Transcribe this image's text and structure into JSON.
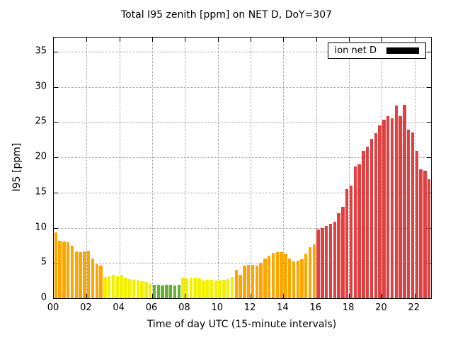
{
  "chart_data": {
    "type": "bar",
    "title": "Total I95 zenith [ppm] on NET D, DoY=307",
    "xlabel": "Time of day UTC (15-minute intervals)",
    "ylabel": "I95 [ppm]",
    "legend": {
      "label": "ion net D",
      "swatch_color": "#000000",
      "position": "top-right"
    },
    "grid": true,
    "interval_minutes": 15,
    "start_time": "00:00",
    "xlim_hours": [
      0,
      23
    ],
    "ylim": [
      0,
      37
    ],
    "x_ticks": [
      {
        "hour": 0,
        "label": "00"
      },
      {
        "hour": 2,
        "label": "02"
      },
      {
        "hour": 4,
        "label": "04"
      },
      {
        "hour": 6,
        "label": "06"
      },
      {
        "hour": 8,
        "label": "08"
      },
      {
        "hour": 10,
        "label": "10"
      },
      {
        "hour": 12,
        "label": "12"
      },
      {
        "hour": 14,
        "label": "14"
      },
      {
        "hour": 16,
        "label": "16"
      },
      {
        "hour": 18,
        "label": "18"
      },
      {
        "hour": 20,
        "label": "20"
      },
      {
        "hour": 22,
        "label": "22"
      }
    ],
    "y_ticks": [
      0,
      5,
      10,
      15,
      20,
      25,
      30,
      35
    ],
    "palette": {
      "green": "#66b032",
      "yellow": "#f0f000",
      "orange": "#ffa500",
      "red": "#e04040"
    },
    "values": [
      9.4,
      8.1,
      8.0,
      7.9,
      7.4,
      6.6,
      6.5,
      6.6,
      6.7,
      5.6,
      4.8,
      4.6,
      3.0,
      3.1,
      3.3,
      3.1,
      3.3,
      2.9,
      2.7,
      2.6,
      2.6,
      2.4,
      2.3,
      2.1,
      1.9,
      1.9,
      1.8,
      1.9,
      1.9,
      1.8,
      1.9,
      2.9,
      2.8,
      2.9,
      2.9,
      2.8,
      2.5,
      2.6,
      2.6,
      2.5,
      2.5,
      2.6,
      2.7,
      3.0,
      4.0,
      3.3,
      4.6,
      4.7,
      4.7,
      4.6,
      5.0,
      5.6,
      6.0,
      6.4,
      6.5,
      6.5,
      6.3,
      5.6,
      5.2,
      5.3,
      5.5,
      6.3,
      7.2,
      7.6,
      9.8,
      10.0,
      10.3,
      10.6,
      10.9,
      12.1,
      13.0,
      15.5,
      16.0,
      18.7,
      19.0,
      20.9,
      21.5,
      22.6,
      23.4,
      24.5,
      25.3,
      25.8,
      25.5,
      27.3,
      25.8,
      27.4,
      23.9,
      23.5,
      20.9,
      18.3,
      18.1,
      16.9
    ],
    "colors": [
      "orange",
      "orange",
      "orange",
      "orange",
      "orange",
      "orange",
      "orange",
      "orange",
      "orange",
      "orange",
      "orange",
      "orange",
      "yellow",
      "yellow",
      "yellow",
      "yellow",
      "yellow",
      "yellow",
      "yellow",
      "yellow",
      "yellow",
      "yellow",
      "yellow",
      "yellow",
      "green",
      "green",
      "green",
      "green",
      "green",
      "green",
      "green",
      "yellow",
      "yellow",
      "yellow",
      "yellow",
      "yellow",
      "yellow",
      "yellow",
      "yellow",
      "yellow",
      "yellow",
      "yellow",
      "yellow",
      "yellow",
      "orange",
      "orange",
      "orange",
      "orange",
      "orange",
      "orange",
      "orange",
      "orange",
      "orange",
      "orange",
      "orange",
      "orange",
      "orange",
      "orange",
      "orange",
      "orange",
      "orange",
      "orange",
      "orange",
      "orange",
      "red",
      "red",
      "red",
      "red",
      "red",
      "red",
      "red",
      "red",
      "red",
      "red",
      "red",
      "red",
      "red",
      "red",
      "red",
      "red",
      "red",
      "red",
      "red",
      "red",
      "red",
      "red",
      "red",
      "red",
      "red",
      "red",
      "red",
      "red"
    ]
  }
}
